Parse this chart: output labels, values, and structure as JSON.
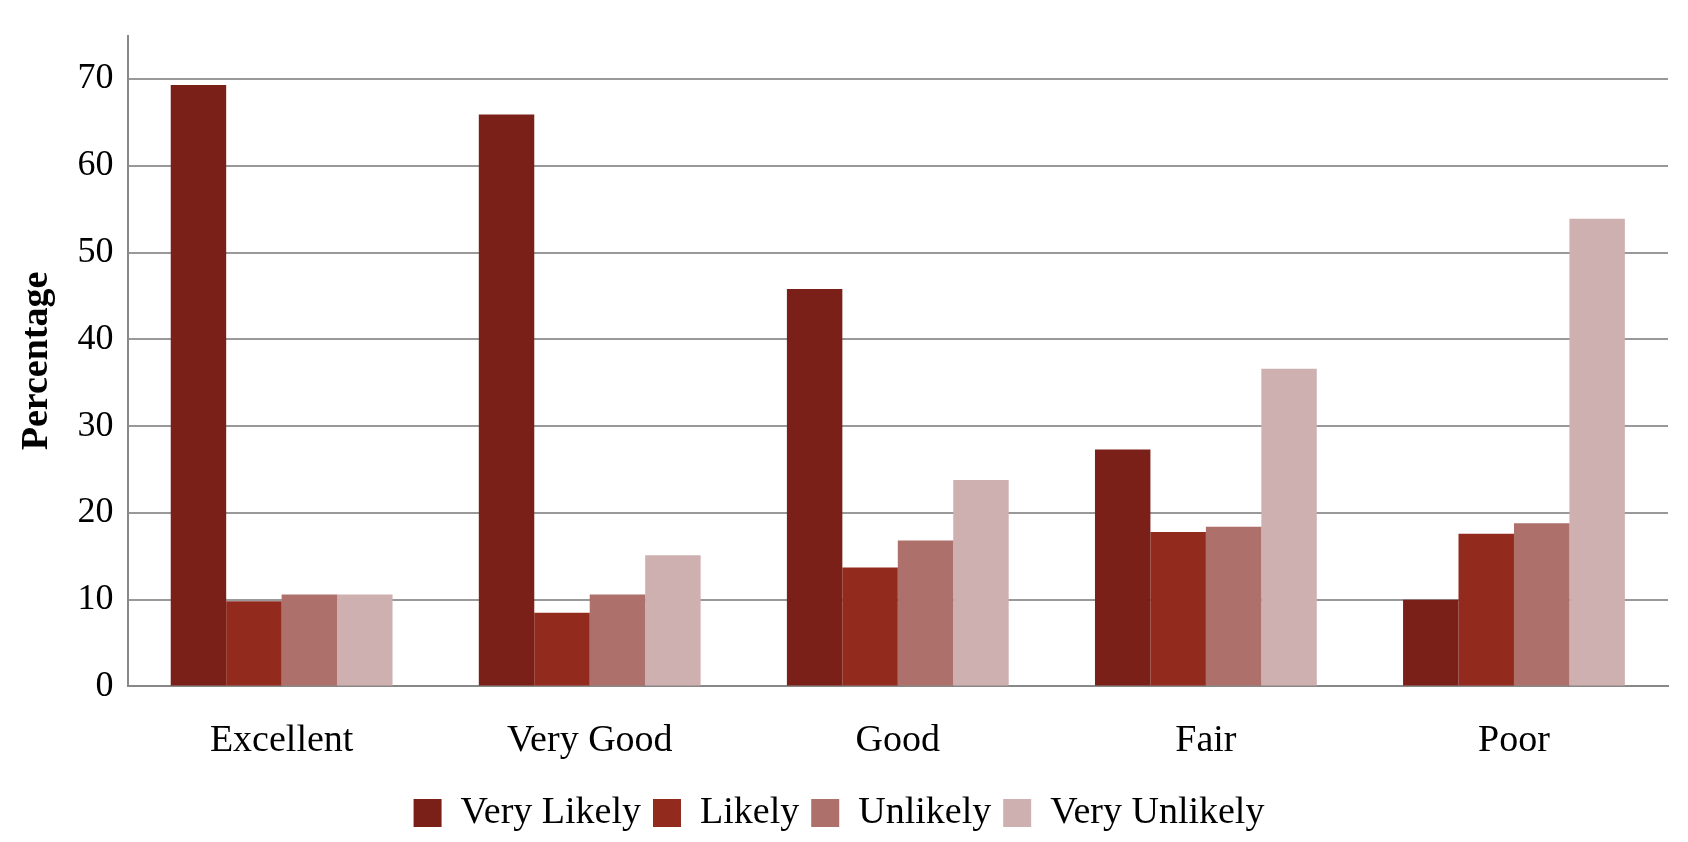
{
  "chart_data": {
    "type": "bar",
    "ylabel": "Percentage",
    "categories": [
      "Excellent",
      "Very Good",
      "Good",
      "Fair",
      "Poor"
    ],
    "series": [
      {
        "name": "Very Likely",
        "color": "#7a2018",
        "values": [
          69.3,
          65.9,
          45.8,
          27.3,
          10
        ]
      },
      {
        "name": "Likely",
        "color": "#922a1e",
        "values": [
          9.8,
          8.5,
          13.7,
          17.8,
          17.6
        ]
      },
      {
        "name": "Unlikely",
        "color": "#ad706a",
        "values": [
          10.6,
          10.6,
          16.8,
          18.4,
          18.8
        ]
      },
      {
        "name": "Very Unlikely",
        "color": "#cfb0b0",
        "values": [
          10.6,
          15.1,
          23.8,
          36.6,
          53.9
        ]
      }
    ],
    "ylim": [
      0,
      75
    ],
    "yticks": [
      0,
      10,
      20,
      30,
      40,
      50,
      60,
      70
    ],
    "grid": "y",
    "legend": "bottom"
  }
}
